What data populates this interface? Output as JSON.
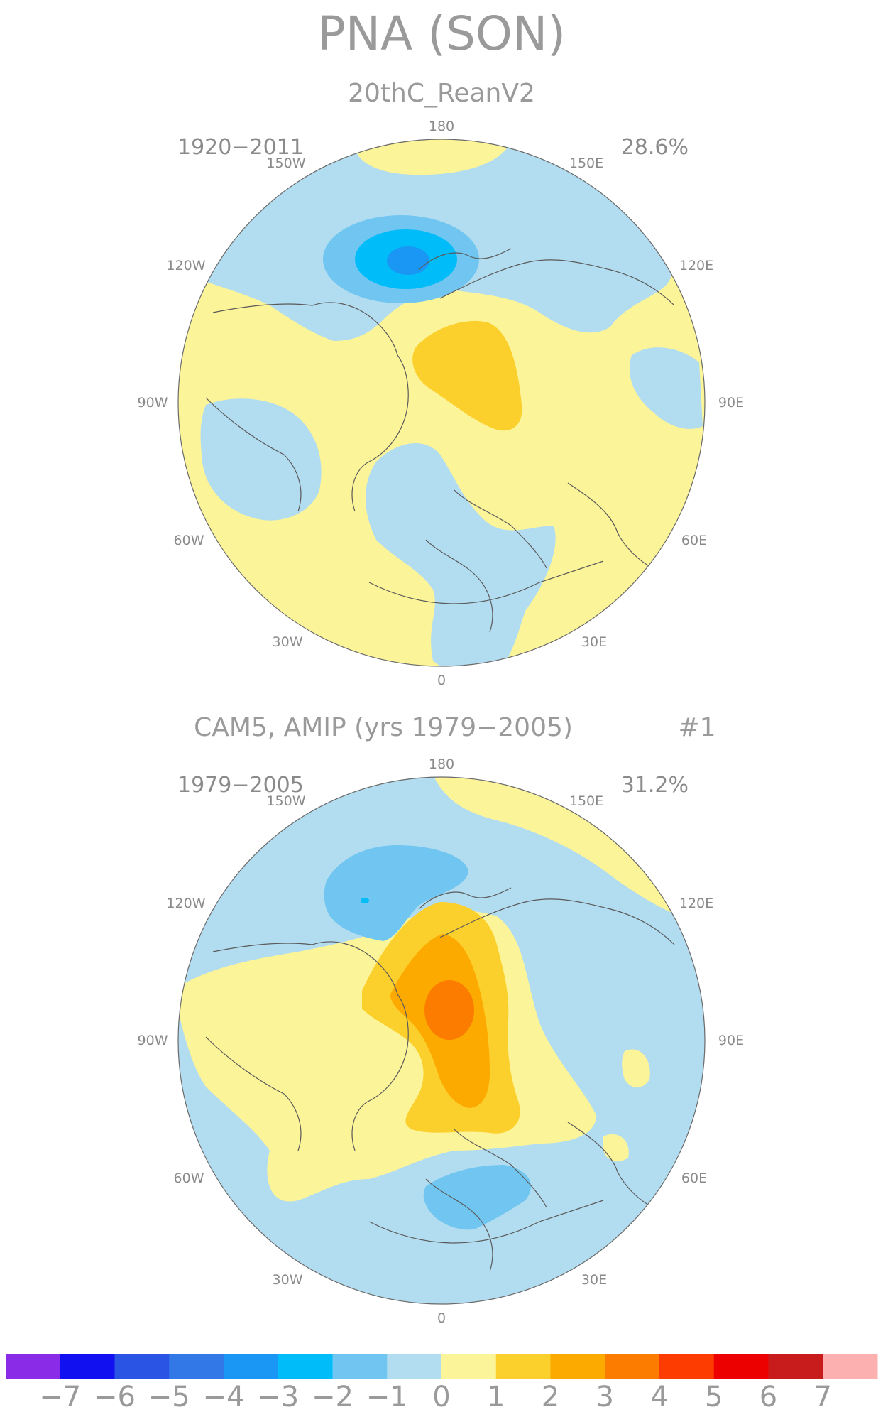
{
  "figure": {
    "title": "PNA (SON)",
    "colors": {
      "neg7": "#8a2be8",
      "neg6": "#1010f0",
      "neg5": "#2a55e4",
      "neg4": "#3278e6",
      "neg3": "#1a96f4",
      "neg2": "#00bcf8",
      "neg1": "#70c6f0",
      "neg0": "#b2dcf0",
      "pos0": "#fcf498",
      "pos1": "#fcd02c",
      "pos2": "#fcaa00",
      "pos3": "#fc7c00",
      "pos4": "#fc3c00",
      "pos5": "#ec0000",
      "pos6": "#c81c1c",
      "pos7": "#fcb0b0"
    }
  },
  "panels": [
    {
      "subtitle": "20thC_ReanV2",
      "years": "1920−2011",
      "variance": "28.6%",
      "longitude_labels": {
        "l180": "180",
        "l150e": "150E",
        "l120e": "120E",
        "l90e": "90E",
        "l60e": "60E",
        "l30e": "30E",
        "l0": "0",
        "l30w": "30W",
        "l60w": "60W",
        "l90w": "90W",
        "l120w": "120W",
        "l150w": "150W"
      }
    },
    {
      "subtitle": "CAM5, AMIP (yrs 1979−2005)",
      "run_id": "#1",
      "years": "1979−2005",
      "variance": "31.2%",
      "longitude_labels": {
        "l180": "180",
        "l150e": "150E",
        "l120e": "120E",
        "l90e": "90E",
        "l60e": "60E",
        "l30e": "30E",
        "l0": "0",
        "l30w": "30W",
        "l60w": "60W",
        "l90w": "90W",
        "l120w": "120W",
        "l150w": "150W"
      }
    }
  ],
  "colorbar": {
    "labels": [
      "−7",
      "−6",
      "−5",
      "−4",
      "−3",
      "−2",
      "−1",
      "0",
      "1",
      "2",
      "3",
      "4",
      "5",
      "6",
      "7"
    ],
    "colors": [
      "#8a2be8",
      "#1010f0",
      "#2a55e4",
      "#3278e6",
      "#1a96f4",
      "#00bcf8",
      "#70c6f0",
      "#b2dcf0",
      "#fcf498",
      "#fcd02c",
      "#fcaa00",
      "#fc7c00",
      "#fc3c00",
      "#ec0000",
      "#c81c1c",
      "#fcb0b0"
    ]
  }
}
